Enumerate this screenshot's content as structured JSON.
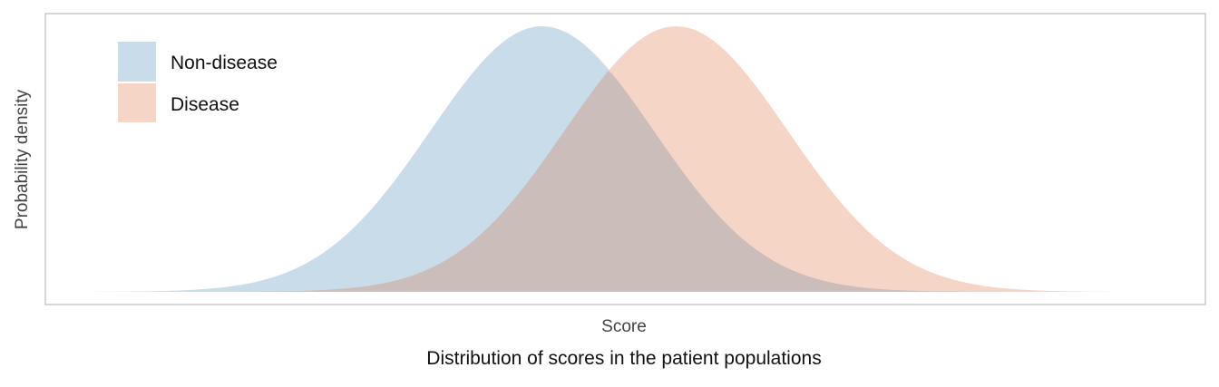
{
  "chart_data": {
    "type": "area",
    "title": "Distribution of scores in the patient populations",
    "xlabel": "Score",
    "ylabel": "Probability density",
    "x_ticks_shown": false,
    "y_ticks_shown": false,
    "grid": false,
    "legend_position": "top-left",
    "xlim": [
      -4,
      5.5
    ],
    "ylim": [
      0,
      0.42
    ],
    "series": [
      {
        "name": "Non-disease",
        "distribution": "normal",
        "mean": 0,
        "sd": 1,
        "color": "#c9dcea"
      },
      {
        "name": "Disease",
        "distribution": "normal",
        "mean": 1.2,
        "sd": 1,
        "color": "#f5d5c6"
      }
    ],
    "overlap_color": "#cbbdba"
  }
}
